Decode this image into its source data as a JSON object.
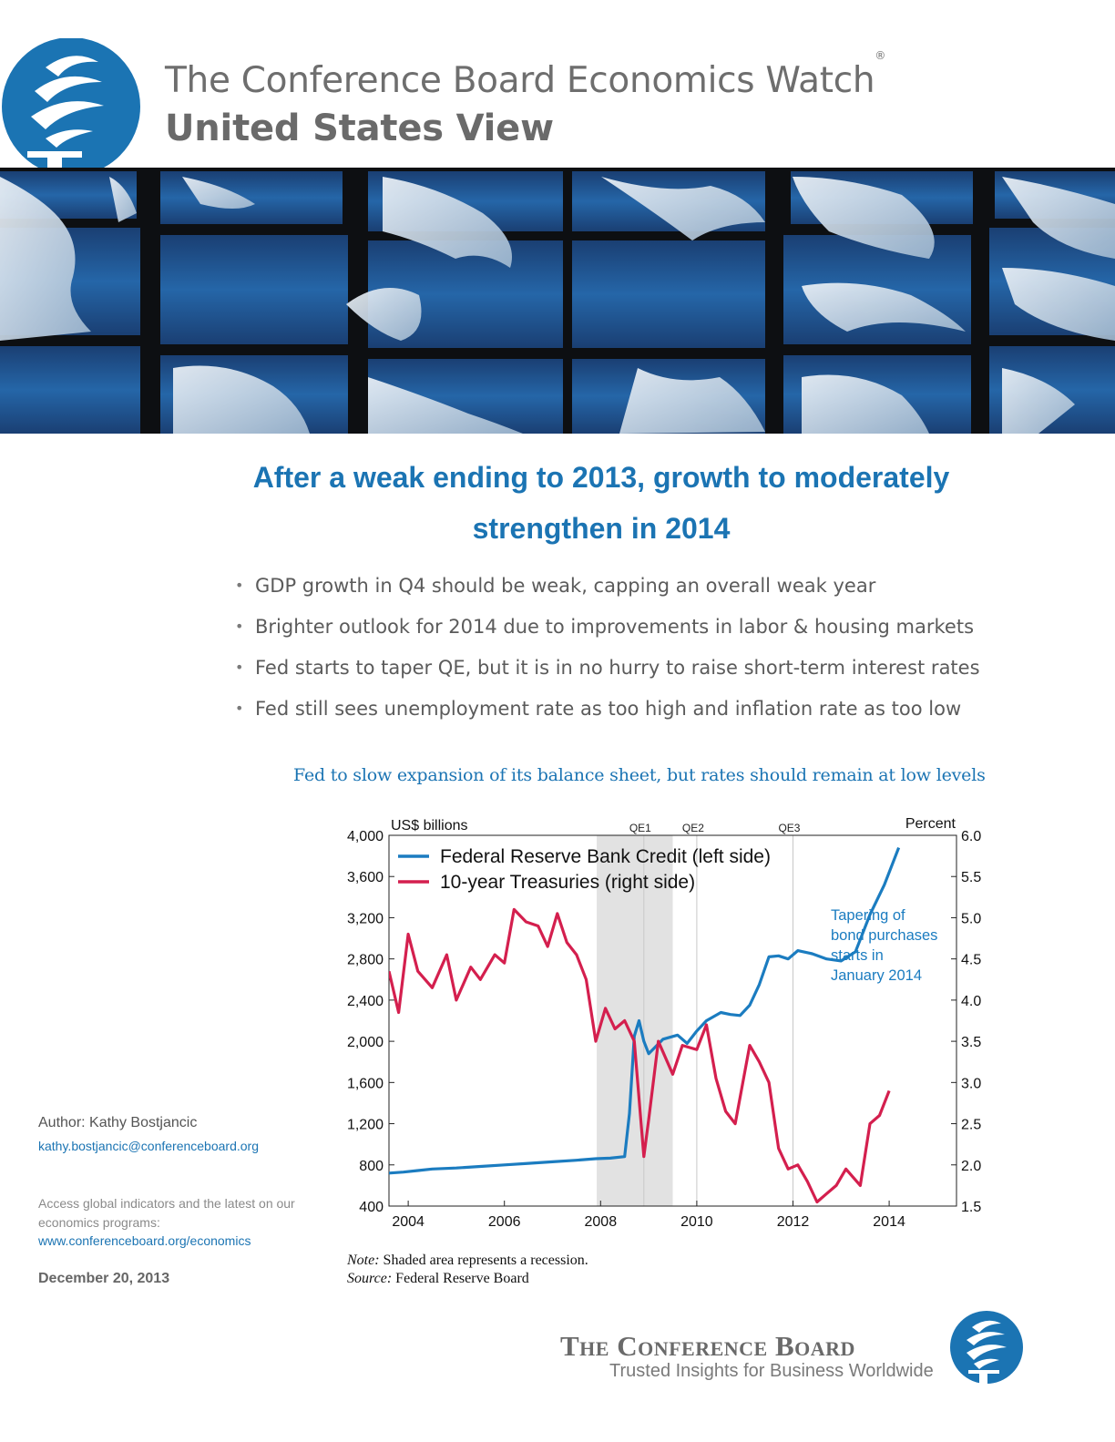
{
  "header": {
    "title": "The Conference Board Economics Watch",
    "title_mark": "®",
    "subtitle": "United States View"
  },
  "headline": "After a weak ending to 2013, growth to moderately strengthen in 2014",
  "bullets": [
    "GDP growth in Q4 should be weak, capping an overall weak year",
    "Brighter outlook for 2014 due to improvements in labor & housing markets",
    "Fed starts to taper QE, but it is in no hurry to raise short-term interest rates",
    "Fed still sees unemployment rate as too high and inflation rate as too low"
  ],
  "chart_title": "Fed to slow expansion of its balance sheet, but rates should remain at low levels",
  "chart_data": {
    "type": "line",
    "xlim": [
      2003.6,
      2015.4
    ],
    "x_ticks": [
      2004,
      2006,
      2008,
      2010,
      2012,
      2014
    ],
    "x_tick_labels": [
      "2004",
      "2006",
      "2008",
      "2010",
      "2012",
      "2014"
    ],
    "left_ylabel": "US$ billions",
    "right_ylabel": "Percent",
    "left_ylim": [
      400,
      4000
    ],
    "right_ylim": [
      1.5,
      6.0
    ],
    "left_ticks": [
      400,
      800,
      1200,
      1600,
      2000,
      2400,
      2800,
      3200,
      3600,
      4000
    ],
    "left_tick_labels": [
      "400",
      "800",
      "1,200",
      "1,600",
      "2,000",
      "2,400",
      "2,800",
      "3,200",
      "3,600",
      "4,000"
    ],
    "right_ticks": [
      1.5,
      2.0,
      2.5,
      3.0,
      3.5,
      4.0,
      4.5,
      5.0,
      5.5,
      6.0
    ],
    "right_tick_labels": [
      "1.5",
      "2.0",
      "2.5",
      "3.0",
      "3.5",
      "4.0",
      "4.5",
      "5.0",
      "5.5",
      "6.0"
    ],
    "legend_position": "top-left",
    "grid": false,
    "recession": [
      2007.92,
      2009.5
    ],
    "event_lines": [
      {
        "label": "QE1",
        "x": 2008.9
      },
      {
        "label": "QE2",
        "x": 2010.0
      },
      {
        "label": "QE3",
        "x": 2012.0
      }
    ],
    "annotation": "Tapering of bond purchases starts in January 2014",
    "series": [
      {
        "name": "Federal Reserve Bank Credit (left side)",
        "axis": "left",
        "color": "#1b7cc0",
        "x": [
          2003.6,
          2003.9,
          2004.2,
          2004.5,
          2005.0,
          2005.5,
          2006.0,
          2006.5,
          2007.0,
          2007.5,
          2007.9,
          2008.2,
          2008.5,
          2008.6,
          2008.7,
          2008.8,
          2008.9,
          2009.0,
          2009.15,
          2009.3,
          2009.6,
          2009.8,
          2010.0,
          2010.2,
          2010.5,
          2010.7,
          2010.9,
          2011.1,
          2011.3,
          2011.5,
          2011.7,
          2011.9,
          2012.1,
          2012.4,
          2012.7,
          2013.0,
          2013.3,
          2013.6,
          2013.9,
          2014.2
        ],
        "y": [
          720,
          730,
          745,
          760,
          770,
          785,
          800,
          815,
          830,
          845,
          860,
          865,
          880,
          1300,
          2050,
          2200,
          2000,
          1880,
          1950,
          2020,
          2060,
          1980,
          2100,
          2200,
          2280,
          2260,
          2250,
          2350,
          2550,
          2820,
          2830,
          2800,
          2880,
          2850,
          2800,
          2780,
          2870,
          3230,
          3520,
          3880
        ]
      },
      {
        "name": "10-year Treasuries (right side)",
        "axis": "right",
        "color": "#d41f4e",
        "x": [
          2003.6,
          2003.8,
          2004.0,
          2004.2,
          2004.5,
          2004.8,
          2005.0,
          2005.3,
          2005.5,
          2005.8,
          2006.0,
          2006.2,
          2006.45,
          2006.7,
          2006.9,
          2007.1,
          2007.3,
          2007.5,
          2007.7,
          2007.9,
          2008.1,
          2008.3,
          2008.5,
          2008.7,
          2008.9,
          2009.0,
          2009.2,
          2009.5,
          2009.7,
          2010.0,
          2010.2,
          2010.4,
          2010.6,
          2010.8,
          2011.1,
          2011.3,
          2011.5,
          2011.7,
          2011.9,
          2012.1,
          2012.3,
          2012.5,
          2012.7,
          2012.9,
          2013.1,
          2013.4,
          2013.6,
          2013.8,
          2014.0
        ],
        "y": [
          4.35,
          3.85,
          4.8,
          4.35,
          4.15,
          4.55,
          4.0,
          4.4,
          4.25,
          4.55,
          4.45,
          5.1,
          4.95,
          4.9,
          4.65,
          5.05,
          4.7,
          4.55,
          4.25,
          3.5,
          3.9,
          3.65,
          3.75,
          3.5,
          2.1,
          2.55,
          3.5,
          3.1,
          3.45,
          3.4,
          3.7,
          3.05,
          2.65,
          2.5,
          3.45,
          3.25,
          3.0,
          2.2,
          1.95,
          2.0,
          1.8,
          1.55,
          1.65,
          1.75,
          1.95,
          1.75,
          2.5,
          2.6,
          2.9
        ]
      }
    ]
  },
  "chart_note_label": "Note:",
  "chart_note": "Shaded area represents a recession.",
  "chart_source_label": "Source:",
  "chart_source": "Federal Reserve Board",
  "sidebar": {
    "author": "Author: Kathy Bostjancic",
    "email": "kathy.bostjancic@conferenceboard.org",
    "access_text": "Access global indicators and the latest on our economics programs:",
    "website": "www.conferenceboard.org/economics",
    "date": "December 20, 2013"
  },
  "footer": {
    "brand": "The Conference Board",
    "tagline": "Trusted Insights for Business Worldwide"
  },
  "colors": {
    "brand_blue": "#1b74b3",
    "reserve_credit": "#1b7cc0",
    "treasuries": "#d41f4e"
  },
  "icons": [
    "torch-logo"
  ]
}
